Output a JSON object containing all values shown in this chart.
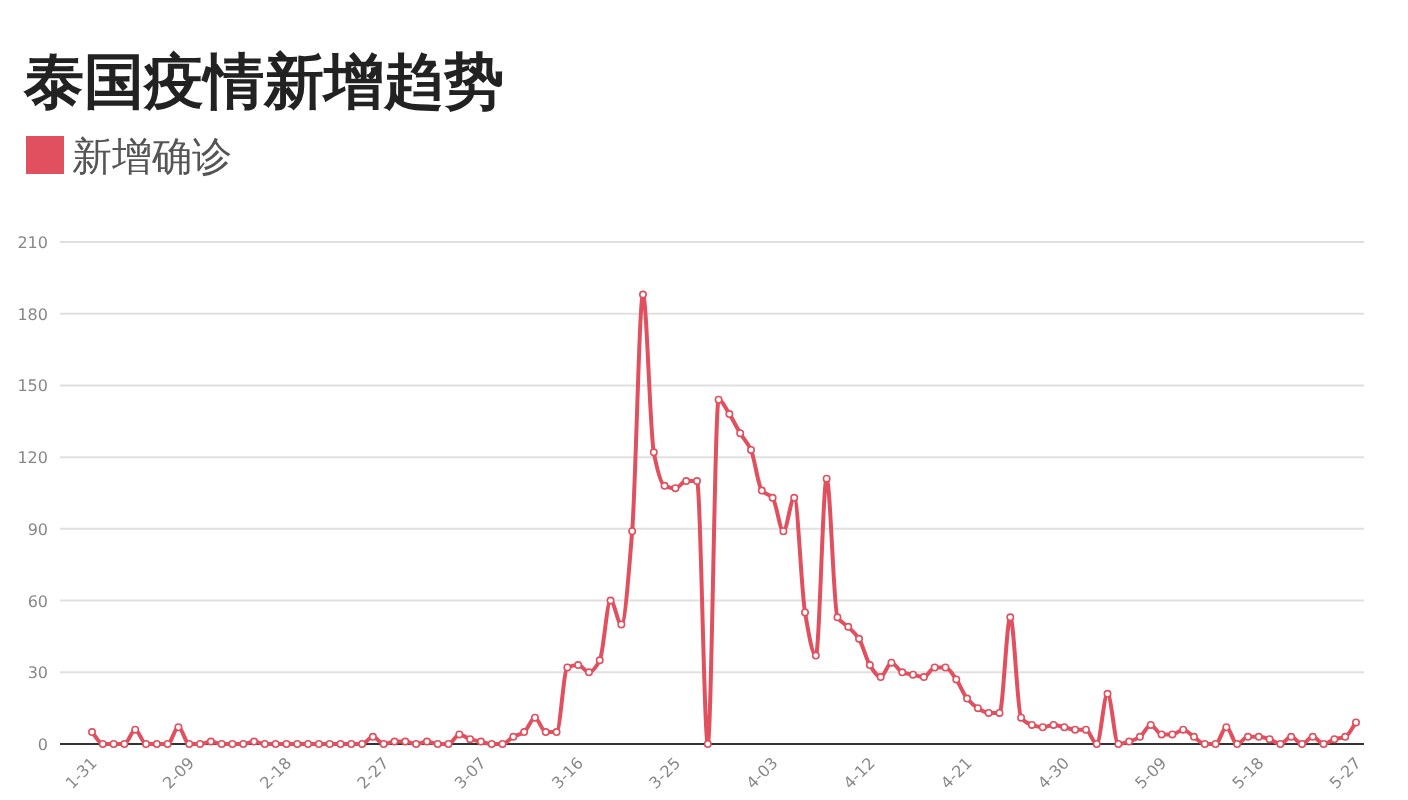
{
  "chart_data": {
    "type": "line",
    "title": "泰国疫情新增趋势",
    "categories": [
      "1-31",
      null,
      null,
      null,
      null,
      null,
      null,
      null,
      null,
      "2-09",
      null,
      null,
      null,
      null,
      null,
      null,
      null,
      null,
      "2-18",
      null,
      null,
      null,
      null,
      null,
      null,
      null,
      null,
      "2-27",
      null,
      null,
      null,
      null,
      null,
      null,
      null,
      null,
      "3-07",
      null,
      null,
      null,
      null,
      null,
      null,
      null,
      null,
      "3-16",
      null,
      null,
      null,
      null,
      null,
      null,
      null,
      null,
      "3-25",
      null,
      null,
      null,
      null,
      null,
      null,
      null,
      null,
      "4-03",
      null,
      null,
      null,
      null,
      null,
      null,
      null,
      null,
      "4-12",
      null,
      null,
      null,
      null,
      null,
      null,
      null,
      null,
      "4-21",
      null,
      null,
      null,
      null,
      null,
      null,
      null,
      null,
      "4-30",
      null,
      null,
      null,
      null,
      null,
      null,
      null,
      null,
      "5-09",
      null,
      null,
      null,
      null,
      null,
      null,
      null,
      null,
      "5-18",
      null,
      null,
      null,
      null,
      null,
      null,
      null,
      null,
      "5-27"
    ],
    "series": [
      {
        "name": "新增确诊",
        "color": "#e0505e",
        "values": [
          5,
          0,
          0,
          0,
          6,
          0,
          0,
          0,
          7,
          0,
          0,
          1,
          0,
          0,
          0,
          1,
          0,
          0,
          0,
          0,
          0,
          0,
          0,
          0,
          0,
          0,
          3,
          0,
          1,
          1,
          0,
          1,
          0,
          0,
          4,
          2,
          1,
          0,
          0,
          3,
          5,
          11,
          5,
          5,
          32,
          33,
          30,
          35,
          60,
          50,
          89,
          188,
          122,
          108,
          107,
          110,
          110,
          0,
          144,
          138,
          130,
          123,
          106,
          103,
          89,
          103,
          55,
          37,
          111,
          53,
          49,
          44,
          33,
          28,
          34,
          30,
          29,
          28,
          32,
          32,
          27,
          19,
          15,
          13,
          13,
          53,
          11,
          8,
          7,
          8,
          7,
          6,
          6,
          0,
          21,
          0,
          1,
          3,
          8,
          4,
          4,
          6,
          3,
          0,
          0,
          7,
          0,
          3,
          3,
          2,
          0,
          3,
          0,
          3,
          0,
          2,
          3,
          9
        ]
      }
    ],
    "ylim": [
      0,
      210
    ],
    "yticks": [
      0,
      30,
      60,
      90,
      120,
      150,
      180,
      210
    ],
    "grid": "y",
    "legend": "top left",
    "marker": "circle",
    "line_style": "solid"
  }
}
